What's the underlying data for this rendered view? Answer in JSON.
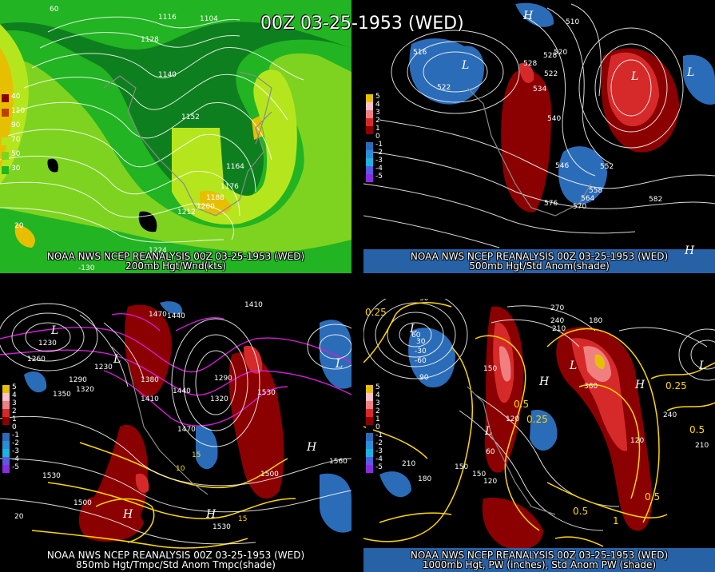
{
  "title": "00Z 03-25-1953 (WED)",
  "panels": {
    "top_left": {
      "caption_line1": "NOAA NWS NCEP REANALYSIS 00Z 03-25-1953 (WED)",
      "caption_line2": "200mb Hgt/Wnd(kts)",
      "legend": [
        "40",
        "110",
        "90",
        "70",
        "50",
        "30"
      ],
      "contour_labels": [
        "1116",
        "1104",
        "1128",
        "1140",
        "1152",
        "1164",
        "1176",
        "1188",
        "1200",
        "1212",
        "1224"
      ],
      "misc_labels": [
        "60",
        "20",
        "-130"
      ]
    },
    "top_right": {
      "caption_line1": "NOAA NWS NCEP REANALYSIS 00Z 03-25-1953 (WED)",
      "caption_line2": "500mb Hgt/Std Anom(shade)",
      "legend": [
        "5",
        "4",
        "3",
        "2",
        "1",
        "0",
        "-1",
        "-2",
        "-3",
        "-4",
        "-5"
      ],
      "contour_labels": [
        "516",
        "522",
        "528",
        "534",
        "540",
        "546",
        "552",
        "558",
        "564",
        "570",
        "576",
        "582",
        "516",
        "528",
        "510",
        "520",
        "522"
      ]
    },
    "bottom_left": {
      "caption_line1": "NOAA NWS NCEP REANALYSIS 00Z 03-25-1953 (WED)",
      "caption_line2": "850mb Hgt/Tmpc/Std Anom Tmpc(shade)",
      "legend": [
        "5",
        "4",
        "3",
        "2",
        "1",
        "0",
        "-1",
        "-2",
        "-3",
        "-4",
        "-5"
      ],
      "contour_labels": [
        "1410",
        "1470",
        "1440",
        "1230",
        "1260",
        "1290",
        "1320",
        "1350",
        "1380",
        "1410",
        "1440",
        "1470",
        "1500",
        "1530",
        "1560",
        "1530",
        "1500",
        "1320",
        "1290",
        "1530",
        "1230"
      ],
      "temp_labels": [
        "15",
        "10",
        "20",
        "15"
      ]
    },
    "bottom_right": {
      "caption_line1": "NOAA NWS NCEP REANALYSIS 00Z 03-25-1953 (WED)",
      "caption_line2": "1000mb Hgt, PW (inches), Std Anom PW (shade)",
      "legend": [
        "5",
        "4",
        "3",
        "2",
        "1",
        "0",
        "-1",
        "-2",
        "-3",
        "-4",
        "-5"
      ],
      "contour_labels": [
        "90",
        "60",
        "30",
        "-30",
        "-60",
        "270",
        "240",
        "210",
        "180",
        "150",
        "120",
        "90",
        "60",
        "120",
        "150",
        "180",
        "210",
        "240",
        "360",
        "120",
        "150",
        "210"
      ],
      "pw_labels": [
        "0.25",
        "0.5",
        "0.25",
        "0.25",
        "0.5",
        "0.5",
        "1",
        "0.5"
      ]
    }
  },
  "colors": {
    "background": "#000000",
    "wind_dark": "#0e7f1e",
    "wind_mid": "#22b422",
    "wind_light": "#7ed321",
    "wind_pale": "#b5e61d",
    "wind_yellow": "#e6c000",
    "anom_darkred": "#8b0000",
    "anom_red": "#d62a2a",
    "anom_pink": "#f08080",
    "anom_lightpink": "#ffc0cb",
    "anom_blue": "#2b6cb8",
    "anom_cyan": "#19b5e0",
    "anom_purple": "#8a2be2",
    "pw_yellow": "#ffd700",
    "temp_magenta": "#d21ed2"
  }
}
